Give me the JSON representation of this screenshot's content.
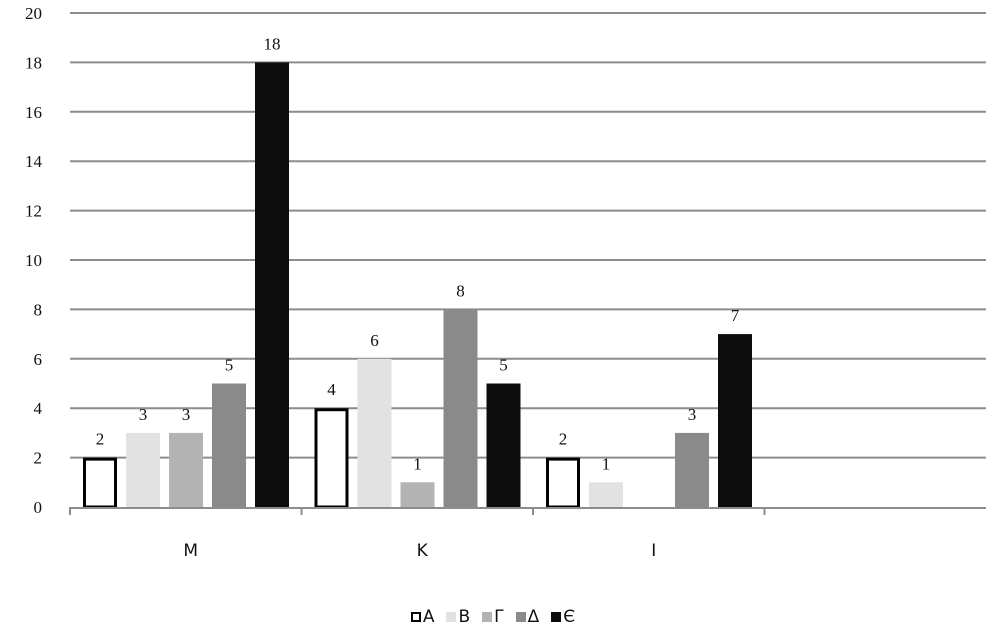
{
  "chart_data": {
    "type": "bar",
    "title": "",
    "xlabel": "",
    "ylabel": "",
    "ylim": [
      0,
      20
    ],
    "yticks": [
      "0",
      "2",
      "4",
      "6",
      "8",
      "10",
      "12",
      "14",
      "16",
      "18",
      "20"
    ],
    "categories": [
      "M",
      "K",
      "I"
    ],
    "series": [
      {
        "name": "A",
        "color": "#ffffff",
        "stroke": "#000000",
        "values": [
          2,
          4,
          2
        ]
      },
      {
        "name": "B",
        "color": "#e2e2e2",
        "stroke": "#e2e2e2",
        "values": [
          3,
          6,
          1
        ]
      },
      {
        "name": "Γ",
        "color": "#b3b3b3",
        "stroke": "#b3b3b3",
        "values": [
          3,
          1,
          null
        ]
      },
      {
        "name": "Δ",
        "color": "#8a8a8a",
        "stroke": "#8a8a8a",
        "values": [
          5,
          8,
          3
        ]
      },
      {
        "name": "Є",
        "color": "#0c0c0c",
        "stroke": "#0c0c0c",
        "values": [
          18,
          5,
          7
        ]
      }
    ],
    "grid": true,
    "legend_position": "bottom"
  }
}
